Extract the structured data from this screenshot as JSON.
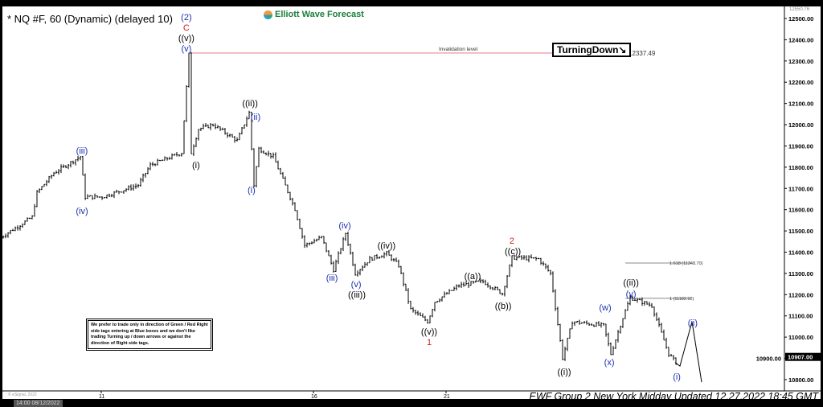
{
  "header": {
    "title": "* NQ #F, 60 (Dynamic) (delayed 10)",
    "logo_text": "Elliott Wave Forecast"
  },
  "tag": {
    "label": "TurningDown↘"
  },
  "invalidation": {
    "label": "Invalidation level",
    "value": "12337.49",
    "price": 12337.49,
    "color": "#e88a9a"
  },
  "fib": [
    {
      "label": "1.618 (11348.70)",
      "price": 11348.7
    },
    {
      "label": "1 (11182.92)",
      "price": 11182.92
    }
  ],
  "note": "We prefer to trade only in direction of Green / Red Right side tags entering at Blue boxes and we don't like trading Turning up / down arrows or against the direction of Right side tags.",
  "footer": "EWF Group 2 New York Midday Updated 12.27.2022 18:45 GMT",
  "datetime_box": "14:00 08/12/2022",
  "copyright": "© eSignal, 2022",
  "chart_data": {
    "type": "ohlc",
    "ylim": [
      10750,
      12580
    ],
    "yticks": [
      12500,
      12400,
      12300,
      12200,
      12100,
      12000,
      11900,
      11800,
      11700,
      11600,
      11500,
      11400,
      11300,
      11200,
      11100,
      11000,
      10900,
      10800
    ],
    "top_label": "12550.76",
    "last_price": "10907.00",
    "xticks": [
      {
        "label": "11",
        "bar": 42
      },
      {
        "label": "16",
        "bar": 130
      },
      {
        "label": "21",
        "bar": 185
      }
    ],
    "path": [
      [
        0,
        11470
      ],
      [
        13,
        11565
      ],
      [
        15,
        11680
      ],
      [
        22,
        11773
      ],
      [
        33,
        11850
      ],
      [
        35,
        11660
      ],
      [
        42,
        11660
      ],
      [
        57,
        11716
      ],
      [
        62,
        11810
      ],
      [
        75,
        11868
      ],
      [
        78,
        12330
      ],
      [
        79,
        11868
      ],
      [
        82,
        11980
      ],
      [
        88,
        12000
      ],
      [
        98,
        11925
      ],
      [
        103,
        12057
      ],
      [
        105,
        11716
      ],
      [
        107,
        11887
      ],
      [
        113,
        11850
      ],
      [
        122,
        11603
      ],
      [
        126,
        11432
      ],
      [
        133,
        11470
      ],
      [
        138,
        11318
      ],
      [
        143,
        11489
      ],
      [
        147,
        11300
      ],
      [
        153,
        11368
      ],
      [
        160,
        11394
      ],
      [
        165,
        11337
      ],
      [
        170,
        11130
      ],
      [
        177,
        11073
      ],
      [
        180,
        11167
      ],
      [
        190,
        11243
      ],
      [
        200,
        11262
      ],
      [
        208,
        11205
      ],
      [
        212,
        11375
      ],
      [
        223,
        11368
      ],
      [
        228,
        11300
      ],
      [
        233,
        10902
      ],
      [
        237,
        11073
      ],
      [
        250,
        11054
      ],
      [
        253,
        10921
      ],
      [
        258,
        11092
      ],
      [
        261,
        11186
      ],
      [
        270,
        11148
      ],
      [
        277,
        10921
      ],
      [
        280,
        10880
      ]
    ],
    "projection": [
      [
        282,
        10864
      ],
      [
        287,
        11073
      ],
      [
        291,
        10788
      ]
    ],
    "labels": [
      {
        "text": "(2)",
        "color": "#1a2fb0",
        "bar": 77.3,
        "price": 12485
      },
      {
        "text": "C",
        "color": "#d42020",
        "bar": 77.3,
        "price": 12443
      },
      {
        "text": "((v))",
        "color": "#000",
        "bar": 77.3,
        "price": 12400
      },
      {
        "text": "(v)",
        "color": "#1a2fb0",
        "bar": 77.3,
        "price": 12360
      },
      {
        "text": "(iii)",
        "color": "#1a2fb0",
        "bar": 34,
        "price": 11879
      },
      {
        "text": "(iv)",
        "color": "#1a2fb0",
        "bar": 34,
        "price": 11595
      },
      {
        "text": "(i)",
        "color": "#000",
        "bar": 81.3,
        "price": 11811
      },
      {
        "text": "((ii))",
        "color": "#000",
        "bar": 103.7,
        "price": 12102
      },
      {
        "text": "(ii)",
        "color": "#1a2fb0",
        "bar": 106,
        "price": 12038
      },
      {
        "text": "(i)",
        "color": "#1a2fb0",
        "bar": 104.3,
        "price": 11693
      },
      {
        "text": "(iv)",
        "color": "#1a2fb0",
        "bar": 143,
        "price": 11527
      },
      {
        "text": "(iii)",
        "color": "#1a2fb0",
        "bar": 137.7,
        "price": 11281
      },
      {
        "text": "(v)",
        "color": "#1a2fb0",
        "bar": 147.7,
        "price": 11250
      },
      {
        "text": "((iii))",
        "color": "#000",
        "bar": 148,
        "price": 11201
      },
      {
        "text": "((iv))",
        "color": "#000",
        "bar": 160.3,
        "price": 11432
      },
      {
        "text": "((a))",
        "color": "#000",
        "bar": 196,
        "price": 11288
      },
      {
        "text": "2",
        "color": "#d42020",
        "bar": 212.3,
        "price": 11447
      },
      {
        "text": "((c))",
        "color": "#000",
        "bar": 212.7,
        "price": 11405
      },
      {
        "text": "((b))",
        "color": "#000",
        "bar": 208.7,
        "price": 11148
      },
      {
        "text": "((v))",
        "color": "#000",
        "bar": 178,
        "price": 11019
      },
      {
        "text": "1",
        "color": "#d42020",
        "bar": 178,
        "price": 10978
      },
      {
        "text": "(w)",
        "color": "#1a2fb0",
        "bar": 251,
        "price": 11140
      },
      {
        "text": "((ii))",
        "color": "#000",
        "bar": 261.7,
        "price": 11258
      },
      {
        "text": "(y)",
        "color": "#1a2fb0",
        "bar": 261.7,
        "price": 11205
      },
      {
        "text": "(x)",
        "color": "#1a2fb0",
        "bar": 252.7,
        "price": 10883
      },
      {
        "text": "((i))",
        "color": "#000",
        "bar": 234,
        "price": 10837
      },
      {
        "text": "(ii)",
        "color": "#1a2fb0",
        "bar": 287.3,
        "price": 11069
      },
      {
        "text": "(i)",
        "color": "#1a2fb0",
        "bar": 280.7,
        "price": 10815
      }
    ]
  }
}
